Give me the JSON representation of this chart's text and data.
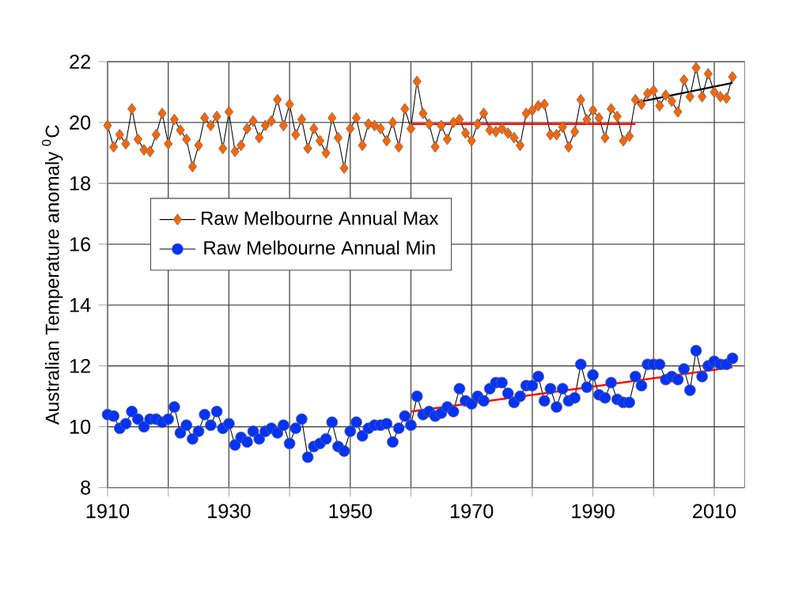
{
  "chart_data": {
    "type": "line",
    "ylabel": "Australian Temperature anomaly $^{0}$C",
    "x": [
      1910,
      1911,
      1912,
      1913,
      1914,
      1915,
      1916,
      1917,
      1918,
      1919,
      1920,
      1921,
      1922,
      1923,
      1924,
      1925,
      1926,
      1927,
      1928,
      1929,
      1930,
      1931,
      1932,
      1933,
      1934,
      1935,
      1936,
      1937,
      1938,
      1939,
      1940,
      1941,
      1942,
      1943,
      1944,
      1945,
      1946,
      1947,
      1948,
      1949,
      1950,
      1951,
      1952,
      1953,
      1954,
      1955,
      1956,
      1957,
      1958,
      1959,
      1960,
      1961,
      1962,
      1963,
      1964,
      1965,
      1966,
      1967,
      1968,
      1969,
      1970,
      1971,
      1972,
      1973,
      1974,
      1975,
      1976,
      1977,
      1978,
      1979,
      1980,
      1981,
      1982,
      1983,
      1984,
      1985,
      1986,
      1987,
      1988,
      1989,
      1990,
      1991,
      1992,
      1993,
      1994,
      1995,
      1996,
      1997,
      1998,
      1999,
      2000,
      2001,
      2002,
      2003,
      2004,
      2005,
      2006,
      2007,
      2008,
      2009,
      2010,
      2011,
      2012,
      2013
    ],
    "series": [
      {
        "name": "Raw Melbourne Annual Max",
        "color": "#ff6600",
        "marker": "diamond",
        "values": [
          19.9,
          19.2,
          19.6,
          19.3,
          20.45,
          19.45,
          19.1,
          19.05,
          19.6,
          20.3,
          19.3,
          20.1,
          19.75,
          19.45,
          18.55,
          19.25,
          20.15,
          19.9,
          20.2,
          19.15,
          20.35,
          19.05,
          19.25,
          19.8,
          20.05,
          19.5,
          19.9,
          20.05,
          20.75,
          19.9,
          20.6,
          19.6,
          20.1,
          19.15,
          19.8,
          19.4,
          19.0,
          20.15,
          19.5,
          18.5,
          19.8,
          20.15,
          19.25,
          19.95,
          19.9,
          19.8,
          19.4,
          20.0,
          19.2,
          20.45,
          19.8,
          21.35,
          20.3,
          19.95,
          19.2,
          19.9,
          19.45,
          20.0,
          20.1,
          19.65,
          19.4,
          19.95,
          20.3,
          19.75,
          19.7,
          19.8,
          19.65,
          19.5,
          19.25,
          20.3,
          20.4,
          20.55,
          20.6,
          19.6,
          19.6,
          19.85,
          19.2,
          19.7,
          20.75,
          20.1,
          20.4,
          20.15,
          19.5,
          20.45,
          20.2,
          19.4,
          19.55,
          20.75,
          20.6,
          20.95,
          21.05,
          20.55,
          20.9,
          20.7,
          20.35,
          21.4,
          20.85,
          21.8,
          20.85,
          21.6,
          21.0,
          20.85,
          20.8,
          21.5
        ]
      },
      {
        "name": "Raw Melbourne Annual Min",
        "color": "#0033ff",
        "marker": "circle",
        "values": [
          10.4,
          10.35,
          9.95,
          10.1,
          10.5,
          10.25,
          10.0,
          10.25,
          10.25,
          10.15,
          10.25,
          10.65,
          9.8,
          10.05,
          9.6,
          9.85,
          10.4,
          10.05,
          10.5,
          9.95,
          10.1,
          9.4,
          9.65,
          9.5,
          9.85,
          9.6,
          9.85,
          9.95,
          9.8,
          10.05,
          9.45,
          9.95,
          10.25,
          9.0,
          9.35,
          9.45,
          9.6,
          10.15,
          9.35,
          9.2,
          9.85,
          10.15,
          9.7,
          9.95,
          10.05,
          10.05,
          10.1,
          9.5,
          9.95,
          10.35,
          10.05,
          11.0,
          10.4,
          10.5,
          10.35,
          10.45,
          10.65,
          10.5,
          11.25,
          10.85,
          10.75,
          11.0,
          10.85,
          11.25,
          11.45,
          11.45,
          11.1,
          10.8,
          11.0,
          11.35,
          11.35,
          11.65,
          10.85,
          11.25,
          10.65,
          11.25,
          10.85,
          10.95,
          12.05,
          11.3,
          11.7,
          11.05,
          10.95,
          11.45,
          10.9,
          10.8,
          10.8,
          11.65,
          11.35,
          12.05,
          12.05,
          12.05,
          11.55,
          11.65,
          11.55,
          11.9,
          11.2,
          12.5,
          11.65,
          12.0,
          12.15,
          12.05,
          12.05,
          12.25
        ]
      },
      {
        "type": "line",
        "color": "#ff0000",
        "marker": "none",
        "x": [
          1960,
          1997
        ],
        "values": [
          19.95,
          19.95
        ]
      },
      {
        "type": "line",
        "color": "#000000",
        "marker": "none",
        "x": [
          1997,
          2013
        ],
        "values": [
          20.65,
          21.3
        ]
      },
      {
        "type": "line",
        "color": "#ff0000",
        "marker": "none",
        "x": [
          1960,
          2013
        ],
        "values": [
          10.5,
          11.95
        ]
      }
    ],
    "xlim": [
      1910,
      2015
    ],
    "xticks": [
      1910,
      {
        "value": 1920,
        "label": null
      },
      1930,
      {
        "value": 1940,
        "label": null
      },
      1950,
      {
        "value": 1960,
        "label": null
      },
      1970,
      {
        "value": 1980,
        "label": null
      },
      1990,
      {
        "value": 2000,
        "label": null
      },
      2010
    ],
    "ylim": [
      8,
      22
    ],
    "yticks": [
      8,
      10,
      12,
      14,
      16,
      18,
      20,
      22
    ],
    "grid": true,
    "legend": "left"
  }
}
